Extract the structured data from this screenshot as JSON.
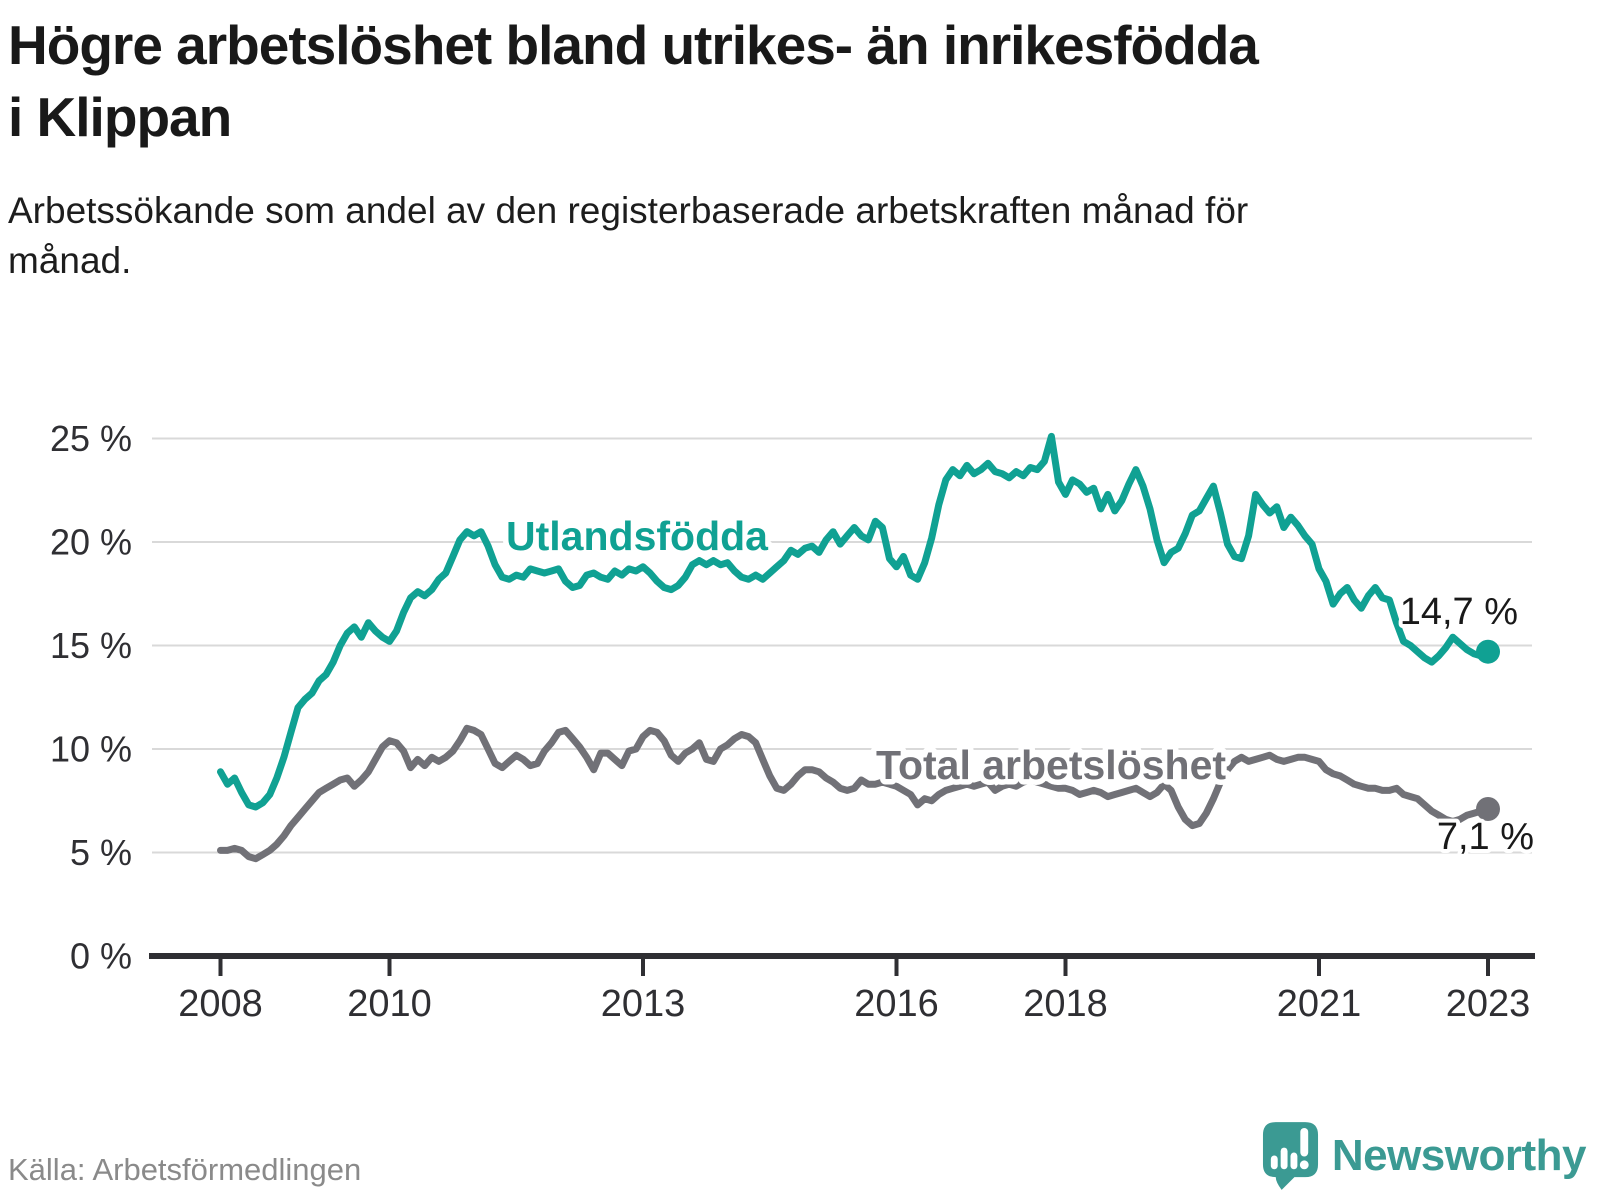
{
  "header": {
    "title": "Högre arbetslöshet bland utrikes- än inrikesfödda i Klippan",
    "subtitle": "Arbetssökande som andel av den registerbaserade arbetskraften månad för månad."
  },
  "footer": {
    "source": "Källa: Arbetsförmedlingen",
    "brand": "Newsworthy"
  },
  "colors": {
    "accent_teal": "#10a193",
    "neutral_gray": "#717177",
    "brand_teal": "#3b9a93",
    "axis_dark": "#2f2f33",
    "gridline": "#d9d9d9"
  },
  "chart_data": {
    "type": "line",
    "title": "Högre arbetslöshet bland utrikes- än inrikesfödda i Klippan",
    "subtitle": "Arbetssökande som andel av den registerbaserade arbetskraften månad för månad.",
    "source": "Källa: Arbetsförmedlingen",
    "x_unit": "month",
    "x_start": "2008-01",
    "x_end": "2023-01",
    "ylim": [
      0,
      26
    ],
    "grid": "horizontal",
    "legend_position": "inline-labels",
    "y_ticks": [
      0,
      5,
      10,
      15,
      20,
      25
    ],
    "y_tick_labels": [
      "0 %",
      "5 %",
      "10 %",
      "15 %",
      "20 %",
      "25 %"
    ],
    "x_ticks": [
      {
        "label": "2008",
        "year": 2008
      },
      {
        "label": "2010",
        "year": 2010
      },
      {
        "label": "2013",
        "year": 2013
      },
      {
        "label": "2016",
        "year": 2016
      },
      {
        "label": "2018",
        "year": 2018
      },
      {
        "label": "2021",
        "year": 2021
      },
      {
        "label": "2023",
        "year": 2023
      }
    ],
    "series": [
      {
        "name": "Utlandsfödda",
        "color": "#10a193",
        "end_label": "14,7 %",
        "end_value": 14.7,
        "values": [
          8.9,
          8.3,
          8.6,
          7.9,
          7.3,
          7.2,
          7.4,
          7.8,
          8.6,
          9.6,
          10.8,
          12.0,
          12.4,
          12.7,
          13.3,
          13.6,
          14.2,
          15.0,
          15.6,
          15.9,
          15.4,
          16.1,
          15.7,
          15.4,
          15.2,
          15.7,
          16.6,
          17.3,
          17.6,
          17.4,
          17.7,
          18.2,
          18.5,
          19.3,
          20.1,
          20.5,
          20.3,
          20.5,
          19.8,
          18.9,
          18.3,
          18.2,
          18.4,
          18.3,
          18.7,
          18.6,
          18.5,
          18.6,
          18.7,
          18.1,
          17.8,
          17.9,
          18.4,
          18.5,
          18.3,
          18.2,
          18.6,
          18.4,
          18.7,
          18.6,
          18.8,
          18.5,
          18.1,
          17.8,
          17.7,
          17.9,
          18.3,
          18.9,
          19.1,
          18.9,
          19.1,
          18.9,
          19.0,
          18.6,
          18.3,
          18.2,
          18.4,
          18.2,
          18.5,
          18.8,
          19.1,
          19.6,
          19.4,
          19.7,
          19.8,
          19.5,
          20.1,
          20.5,
          19.9,
          20.3,
          20.7,
          20.3,
          20.1,
          21.0,
          20.7,
          19.2,
          18.8,
          19.3,
          18.4,
          18.2,
          19.0,
          20.2,
          21.8,
          23.0,
          23.5,
          23.2,
          23.7,
          23.3,
          23.5,
          23.8,
          23.4,
          23.3,
          23.1,
          23.4,
          23.2,
          23.6,
          23.5,
          23.9,
          25.1,
          22.9,
          22.3,
          23.0,
          22.8,
          22.4,
          22.6,
          21.6,
          22.3,
          21.5,
          22.0,
          22.8,
          23.5,
          22.7,
          21.6,
          20.1,
          19.0,
          19.5,
          19.7,
          20.4,
          21.3,
          21.5,
          22.1,
          22.7,
          21.4,
          19.9,
          19.3,
          19.2,
          20.3,
          22.3,
          21.8,
          21.4,
          21.7,
          20.7,
          21.2,
          20.8,
          20.3,
          19.9,
          18.7,
          18.1,
          17.0,
          17.5,
          17.8,
          17.2,
          16.8,
          17.4,
          17.8,
          17.3,
          17.2,
          16.1,
          15.2,
          15.0,
          14.7,
          14.4,
          14.2,
          14.5,
          14.9,
          15.4,
          15.1,
          14.8,
          14.6,
          14.5,
          14.7
        ]
      },
      {
        "name": "Total arbetslöshet",
        "color": "#717177",
        "end_label": "7,1 %",
        "end_value": 7.1,
        "values": [
          5.1,
          5.1,
          5.2,
          5.1,
          4.8,
          4.7,
          4.9,
          5.1,
          5.4,
          5.8,
          6.3,
          6.7,
          7.1,
          7.5,
          7.9,
          8.1,
          8.3,
          8.5,
          8.6,
          8.2,
          8.5,
          8.9,
          9.5,
          10.1,
          10.4,
          10.3,
          9.9,
          9.1,
          9.5,
          9.2,
          9.6,
          9.4,
          9.6,
          9.9,
          10.4,
          11.0,
          10.9,
          10.7,
          10.0,
          9.3,
          9.1,
          9.4,
          9.7,
          9.5,
          9.2,
          9.3,
          9.9,
          10.3,
          10.8,
          10.9,
          10.5,
          10.1,
          9.6,
          9.0,
          9.8,
          9.8,
          9.5,
          9.2,
          9.9,
          10.0,
          10.6,
          10.9,
          10.8,
          10.4,
          9.7,
          9.4,
          9.8,
          10.0,
          10.3,
          9.5,
          9.4,
          10.0,
          10.2,
          10.5,
          10.7,
          10.6,
          10.3,
          9.5,
          8.7,
          8.1,
          8.0,
          8.3,
          8.7,
          9.0,
          9.0,
          8.9,
          8.6,
          8.4,
          8.1,
          8.0,
          8.1,
          8.5,
          8.3,
          8.3,
          8.4,
          8.3,
          8.2,
          8.0,
          7.8,
          7.3,
          7.6,
          7.5,
          7.8,
          8.0,
          8.1,
          8.2,
          8.3,
          8.2,
          8.3,
          8.4,
          8.0,
          8.2,
          8.3,
          8.2,
          8.4,
          8.5,
          8.4,
          8.3,
          8.2,
          8.1,
          8.1,
          8.0,
          7.8,
          7.9,
          8.0,
          7.9,
          7.7,
          7.8,
          7.9,
          8.0,
          8.1,
          7.9,
          7.7,
          7.9,
          8.3,
          8.0,
          7.2,
          6.6,
          6.3,
          6.4,
          6.9,
          7.6,
          8.4,
          9.0,
          9.4,
          9.6,
          9.4,
          9.5,
          9.6,
          9.7,
          9.5,
          9.4,
          9.5,
          9.6,
          9.6,
          9.5,
          9.4,
          9.0,
          8.8,
          8.7,
          8.5,
          8.3,
          8.2,
          8.1,
          8.1,
          8.0,
          8.0,
          8.1,
          7.8,
          7.7,
          7.6,
          7.3,
          7.0,
          6.8,
          6.6,
          6.5,
          6.6,
          6.8,
          6.9,
          7.0,
          7.1
        ]
      }
    ]
  }
}
